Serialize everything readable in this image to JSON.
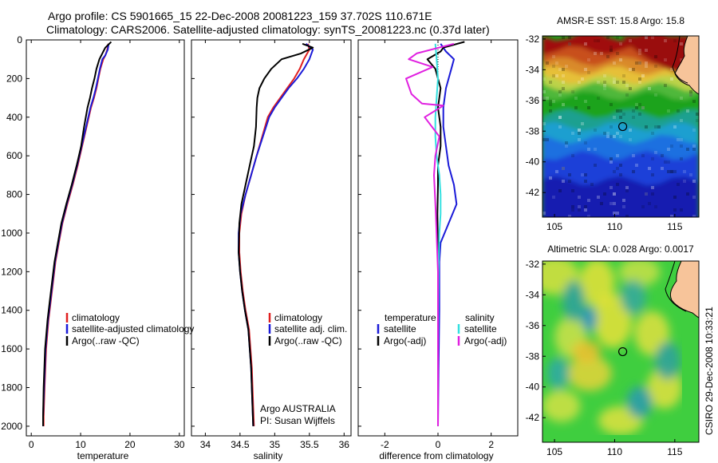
{
  "title": {
    "line1": "Argo profile: CS 5901665_15 22-Dec-2008 20081223_159 37.702S 110.671E",
    "line2": "Climatology: CARS2006. Satellite-adjusted climatology: synTS_20081223.nc (0.37d later)"
  },
  "footer_text": "CSIRO 29-Dec-2008 10:33:21",
  "colors": {
    "climatology": "#e02020",
    "satellite_adjusted": "#1a1ad8",
    "argo": "#000000",
    "salinity_satellite": "#33e0e0",
    "salinity_argo": "#e020e0"
  },
  "chart_data": [
    {
      "type": "line",
      "panel": "temperature",
      "xlabel": "temperature",
      "ylabel": "",
      "xlim": [
        -1,
        31
      ],
      "ylim": [
        2050,
        0
      ],
      "x_ticks": [
        0,
        10,
        20,
        30
      ],
      "y_ticks": [
        0,
        200,
        400,
        600,
        800,
        1000,
        1200,
        1400,
        1600,
        1800,
        2000
      ],
      "legend": [
        "climatology",
        "satellite-adjusted climatology",
        "Argo(..raw -QC)"
      ],
      "series": [
        {
          "name": "climatology",
          "color": "#e02020",
          "x": [
            15.6,
            15.4,
            15.0,
            14.6,
            14.0,
            13.6,
            13.2,
            12.7,
            12.1,
            11.2,
            10.3,
            9.4,
            8.4,
            7.3,
            6.3,
            5.6,
            4.9,
            4.2,
            3.5,
            3.0,
            2.7,
            2.5,
            2.5
          ],
          "y": [
            20,
            50,
            80,
            100,
            150,
            200,
            250,
            300,
            350,
            450,
            550,
            650,
            750,
            850,
            950,
            1050,
            1150,
            1300,
            1450,
            1600,
            1800,
            1950,
            2000
          ]
        },
        {
          "name": "satellite-adjusted climatology",
          "color": "#1a1ad8",
          "x": [
            15.7,
            15.5,
            15.0,
            14.4,
            13.9,
            13.5,
            13.1,
            12.6,
            12.0,
            11.1,
            10.2,
            9.3,
            8.3,
            7.2,
            6.2,
            5.5,
            4.8,
            4.1,
            3.4,
            2.9,
            2.6,
            2.4,
            2.4
          ],
          "y": [
            20,
            50,
            80,
            100,
            150,
            200,
            250,
            300,
            350,
            450,
            550,
            650,
            750,
            850,
            950,
            1050,
            1150,
            1300,
            1450,
            1600,
            1800,
            1950,
            2000
          ]
        },
        {
          "name": "Argo(..raw -QC)",
          "color": "#000000",
          "x": [
            16.2,
            15.0,
            14.6,
            13.8,
            13.2,
            12.8,
            12.3,
            11.9,
            11.4,
            10.7,
            10.1,
            9.2,
            8.2,
            7.1,
            6.1,
            5.4,
            4.7,
            4.0,
            3.3,
            2.8,
            2.5,
            2.4,
            2.4
          ],
          "y": [
            10,
            40,
            60,
            100,
            150,
            200,
            250,
            300,
            350,
            450,
            550,
            650,
            750,
            850,
            950,
            1050,
            1150,
            1300,
            1450,
            1600,
            1800,
            1950,
            2000
          ]
        }
      ]
    },
    {
      "type": "line",
      "panel": "salinity",
      "xlabel": "salinity",
      "ylabel": "",
      "xlim": [
        33.8,
        36.1
      ],
      "ylim": [
        2050,
        0
      ],
      "x_ticks": [
        34,
        34.5,
        35,
        35.5,
        36
      ],
      "legend": [
        "climatology",
        "satellite adj. clim.",
        "Argo(..raw -QC)"
      ],
      "annotation": [
        "Argo AUSTRALIA",
        "PI: Susan Wijffels"
      ],
      "series": [
        {
          "name": "climatology",
          "color": "#e02020",
          "x": [
            35.48,
            35.5,
            35.42,
            35.36,
            35.28,
            35.18,
            35.08,
            34.98,
            34.9,
            34.82,
            34.74,
            34.66,
            34.58,
            34.52,
            34.49,
            34.49,
            34.51,
            34.54,
            34.58,
            34.63,
            34.67,
            34.69,
            34.7
          ],
          "y": [
            20,
            50,
            100,
            150,
            200,
            250,
            300,
            350,
            400,
            500,
            600,
            700,
            800,
            900,
            1000,
            1100,
            1200,
            1300,
            1400,
            1500,
            1700,
            1900,
            2000
          ]
        },
        {
          "name": "satellite adj. clim.",
          "color": "#1a1ad8",
          "x": [
            35.45,
            35.55,
            35.5,
            35.42,
            35.32,
            35.2,
            35.1,
            35.0,
            34.92,
            34.83,
            34.74,
            34.66,
            34.58,
            34.51,
            34.48,
            34.48,
            34.5,
            34.53,
            34.57,
            34.62,
            34.66,
            34.68,
            34.69
          ],
          "y": [
            20,
            50,
            100,
            150,
            200,
            250,
            300,
            350,
            400,
            500,
            600,
            700,
            800,
            900,
            1000,
            1100,
            1200,
            1300,
            1400,
            1500,
            1700,
            1900,
            2000
          ]
        },
        {
          "name": "Argo(..raw -QC)",
          "color": "#000000",
          "x": [
            35.4,
            35.55,
            35.38,
            35.1,
            34.95,
            34.85,
            34.78,
            34.75,
            34.74,
            34.73,
            34.7,
            34.64,
            34.58,
            34.52,
            34.49,
            34.48,
            34.5,
            34.53,
            34.57,
            34.62,
            34.66,
            34.68,
            34.69
          ],
          "y": [
            20,
            40,
            70,
            100,
            150,
            200,
            250,
            300,
            350,
            450,
            550,
            650,
            750,
            850,
            950,
            1100,
            1200,
            1300,
            1400,
            1500,
            1700,
            1900,
            2000
          ]
        }
      ]
    },
    {
      "type": "line",
      "panel": "difference",
      "xlabel": "difference from climatology",
      "ylabel": "",
      "xlim": [
        -3,
        3
      ],
      "ylim": [
        2050,
        0
      ],
      "x_ticks": [
        -2,
        0,
        2
      ],
      "legend": {
        "temperature_header": "temperature",
        "salinity_header": "salinity",
        "temperature": [
          "satellite",
          "Argo(-adj)"
        ],
        "salinity": [
          "satellite",
          "Argo(-adj)"
        ]
      },
      "series": [
        {
          "name": "temperature satellite",
          "color": "#1a1ad8",
          "x": [
            0.1,
            0.3,
            0.6,
            0.5,
            0.3,
            0.2,
            0.2,
            0.3,
            0.4,
            0.6,
            0.7,
            0.4,
            0.1,
            0.05,
            0.05,
            0.02,
            0.0
          ],
          "y": [
            20,
            60,
            100,
            150,
            250,
            350,
            450,
            550,
            650,
            750,
            850,
            950,
            1050,
            1150,
            1400,
            1700,
            2000
          ]
        },
        {
          "name": "temperature Argo(-adj)",
          "color": "#000000",
          "x": [
            1.0,
            0.2,
            0.1,
            -0.4,
            -0.1,
            0.1,
            0.0,
            0.1,
            0.1,
            0.0,
            0.0,
            -0.02,
            0.0,
            0.0,
            0.0,
            0.0
          ],
          "y": [
            10,
            40,
            60,
            100,
            150,
            250,
            350,
            450,
            550,
            650,
            750,
            900,
            1100,
            1400,
            1700,
            2000
          ]
        },
        {
          "name": "salinity satellite",
          "color": "#33e0e0",
          "x": [
            -0.1,
            -0.05,
            0.0,
            -0.05,
            -0.1,
            -0.1,
            -0.05,
            0.05,
            0.1,
            0.1,
            0.05,
            0.02,
            0.0,
            0.0
          ],
          "y": [
            20,
            100,
            200,
            300,
            400,
            500,
            600,
            700,
            800,
            900,
            1000,
            1200,
            1600,
            2000
          ]
        },
        {
          "name": "salinity Argo(-adj)",
          "color": "#e020e0",
          "x": [
            0.6,
            -0.8,
            -1.1,
            -0.2,
            -1.2,
            -1.0,
            -0.6,
            0.2,
            -0.5,
            0.05,
            -0.1,
            -0.15,
            -0.08,
            0.0,
            0.0
          ],
          "y": [
            20,
            70,
            100,
            140,
            200,
            280,
            330,
            340,
            400,
            500,
            600,
            700,
            900,
            1200,
            2000
          ]
        }
      ]
    },
    {
      "type": "heatmap",
      "panel": "sst-map",
      "title": "AMSR-E SST: 15.8  Argo: 15.8",
      "xlim": [
        104,
        117
      ],
      "ylim": [
        -43.6,
        -31.8
      ],
      "x_ticks": [
        105,
        110,
        115
      ],
      "y_ticks": [
        -32,
        -34,
        -36,
        -38,
        -40,
        -42
      ],
      "marker": {
        "lon": 110.671,
        "lat": -37.702
      }
    },
    {
      "type": "heatmap",
      "panel": "sla-map",
      "title": "Altimetric SLA: 0.028  Argo: 0.0017",
      "xlim": [
        104,
        117
      ],
      "ylim": [
        -43.6,
        -31.8
      ],
      "x_ticks": [
        105,
        110,
        115
      ],
      "y_ticks": [
        -32,
        -34,
        -36,
        -38,
        -40,
        -42
      ],
      "marker": {
        "lon": 110.671,
        "lat": -37.702
      }
    }
  ]
}
